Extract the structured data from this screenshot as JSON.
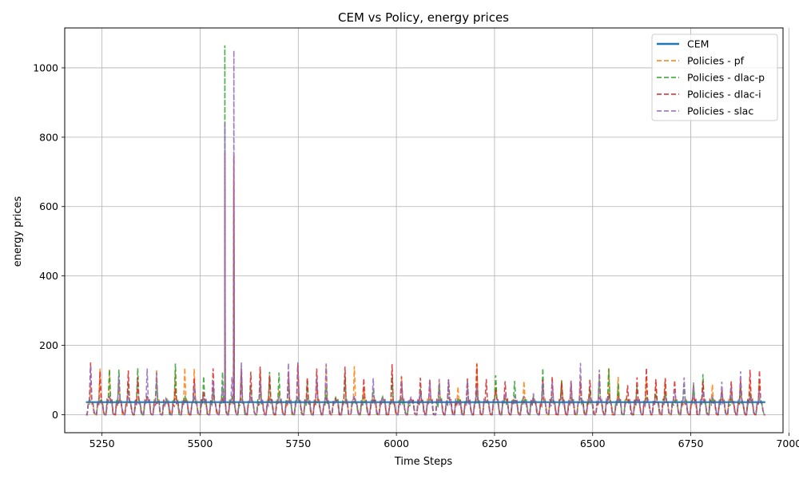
{
  "chart_data": {
    "type": "line",
    "title": "CEM vs Policy, energy prices",
    "xlabel": "Time Steps",
    "ylabel": "energy prices",
    "xlim": [
      5155,
      6985
    ],
    "ylim": [
      -52,
      1115
    ],
    "xticks": [
      5250,
      5500,
      5750,
      6000,
      6250,
      6500,
      6750,
      7000
    ],
    "yticks": [
      0,
      200,
      400,
      600,
      800,
      1000
    ],
    "grid": true,
    "legend_position": "top-right",
    "x_start": 5209,
    "x_end": 6940,
    "cem_value": 36,
    "spikes": [
      {
        "x": 5563,
        "peak": 1065,
        "series": "Policies - dlac-p"
      },
      {
        "x": 5586,
        "peak": 1050,
        "series": "Policies - slac"
      }
    ],
    "series": [
      {
        "name": "CEM",
        "color": "#1f77b4",
        "style": "solid",
        "values": [
          36,
          36
        ]
      },
      {
        "name": "Policies - pf",
        "color": "#ff7f0e",
        "style": "dashed",
        "typical_range": [
          0,
          150
        ]
      },
      {
        "name": "Policies - dlac-p",
        "color": "#2ca02c",
        "style": "dashed",
        "typical_range": [
          0,
          150
        ]
      },
      {
        "name": "Policies - dlac-i",
        "color": "#d62728",
        "style": "dashed",
        "typical_range": [
          0,
          155
        ]
      },
      {
        "name": "Policies - slac",
        "color": "#9467bd",
        "style": "dashed",
        "typical_range": [
          0,
          160
        ]
      }
    ]
  }
}
